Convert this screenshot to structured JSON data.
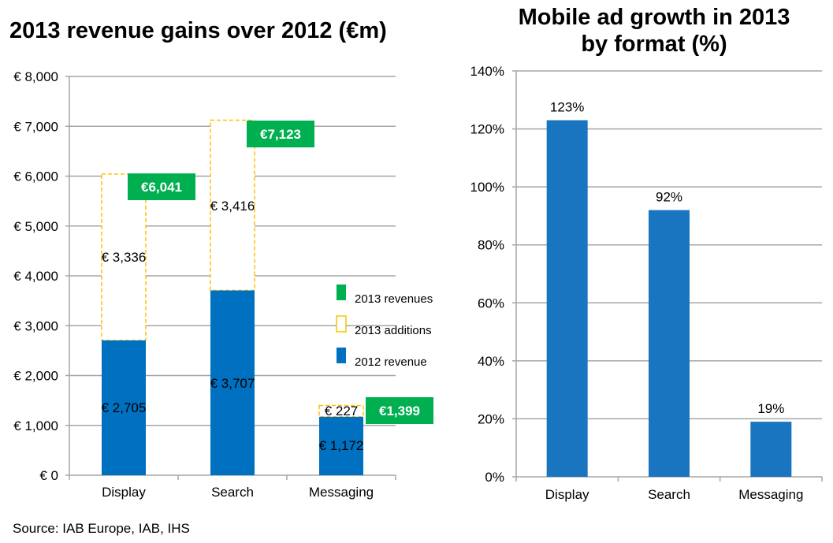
{
  "source": "Source: IAB Europe, IAB, IHS",
  "chart_data": [
    {
      "type": "bar",
      "stacked": true,
      "title": "2013 revenue gains over 2012 (€m)",
      "xlabel": "",
      "ylabel": "",
      "categories": [
        "Display",
        "Search",
        "Messaging"
      ],
      "ylim": [
        0,
        8000
      ],
      "yticks": [
        0,
        1000,
        2000,
        3000,
        4000,
        5000,
        6000,
        7000,
        8000
      ],
      "ytick_labels": [
        "€ 0",
        "€ 1,000",
        "€ 2,000",
        "€ 3,000",
        "€ 4,000",
        "€ 5,000",
        "€ 6,000",
        "€ 7,000",
        "€ 8,000"
      ],
      "grid": true,
      "legend_position": "right",
      "series": [
        {
          "name": "2012 revenue",
          "color": "#0070C0",
          "values": [
            2705,
            3707,
            1172
          ],
          "labels": [
            "€ 2,705",
            "€ 3,707",
            "€ 1,172"
          ]
        },
        {
          "name": "2013 additions",
          "color": "#FFC000",
          "style": "dashed-outline",
          "values": [
            3336,
            3416,
            227
          ],
          "labels": [
            "€ 3,336",
            "€ 3,416",
            "€ 227"
          ]
        },
        {
          "name": "2013 revenues",
          "color": "#00B050",
          "values": [
            6041,
            7123,
            1399
          ],
          "labels": [
            "€6,041",
            "€7,123",
            "€1,399"
          ]
        }
      ],
      "legend": [
        "2013 revenues",
        "2013 additions",
        "2012 revenue"
      ]
    },
    {
      "type": "bar",
      "title": "Mobile ad growth in 2013\nby format (%)",
      "title_lines": [
        "Mobile ad growth in 2013",
        "by format (%)"
      ],
      "xlabel": "",
      "ylabel": "",
      "categories": [
        "Display",
        "Search",
        "Messaging"
      ],
      "values": [
        123,
        92,
        19
      ],
      "labels": [
        "123%",
        "92%",
        "19%"
      ],
      "color": "#1A75C0",
      "ylim": [
        0,
        140
      ],
      "yticks": [
        0,
        20,
        40,
        60,
        80,
        100,
        120,
        140
      ],
      "ytick_labels": [
        "0%",
        "20%",
        "40%",
        "60%",
        "80%",
        "100%",
        "120%",
        "140%"
      ],
      "grid": true
    }
  ]
}
